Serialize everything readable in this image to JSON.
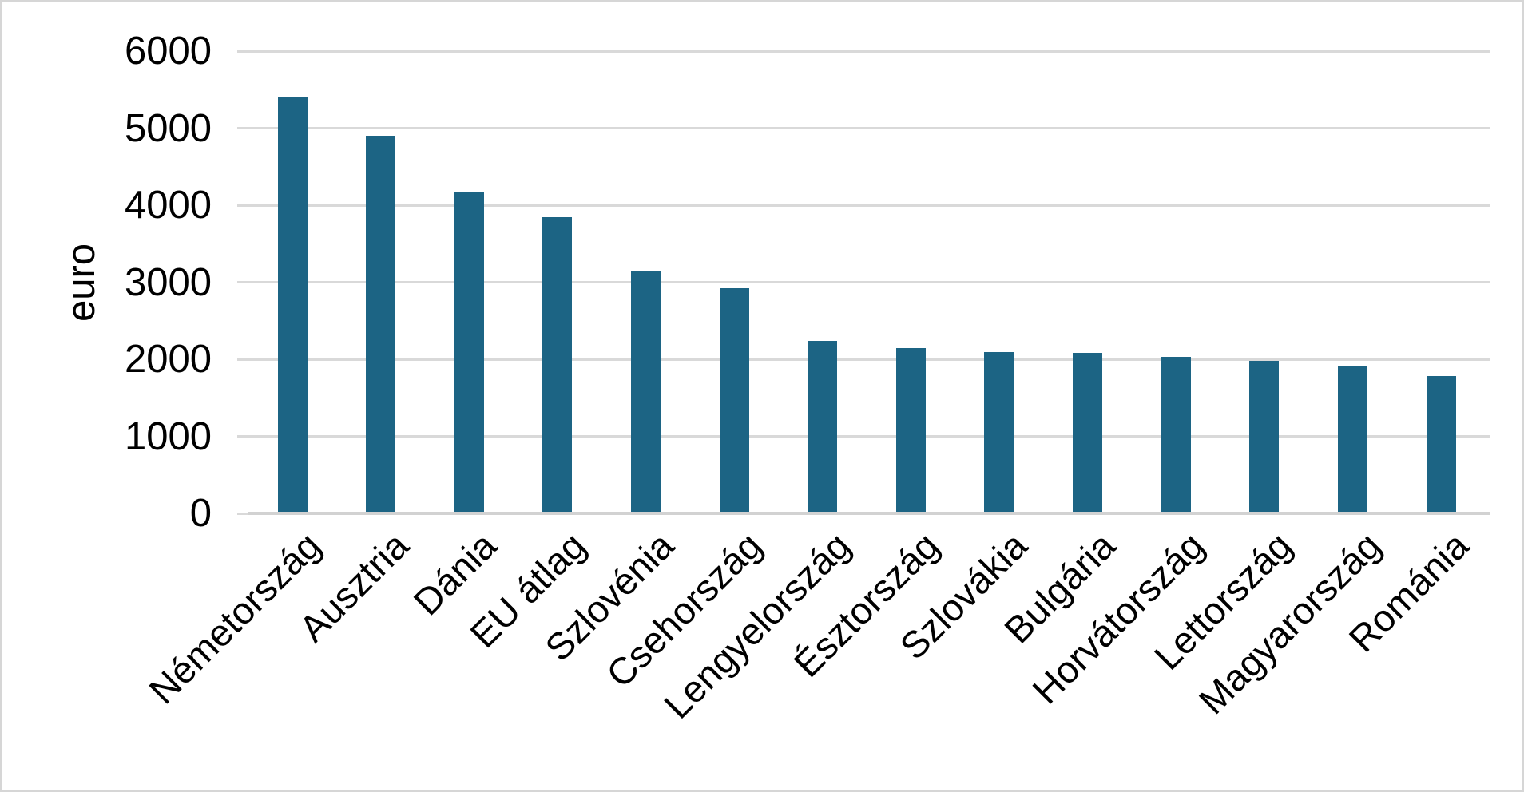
{
  "chart_data": {
    "type": "bar",
    "title": "",
    "ylabel": "euro",
    "xlabel": "",
    "categories": [
      "Németország",
      "Ausztria",
      "Dánia",
      "EU átlag",
      "Szlovénia",
      "Csehország",
      "Lengyelország",
      "Észtország",
      "Szlovákia",
      "Bulgária",
      "Horvátország",
      "Lettország",
      "Magyarország",
      "Románia"
    ],
    "values": [
      5400,
      4900,
      4180,
      3840,
      3140,
      2920,
      2240,
      2150,
      2090,
      2085,
      2030,
      1975,
      1920,
      1780
    ],
    "ylim": [
      0,
      6000
    ],
    "yticks": [
      0,
      1000,
      2000,
      3000,
      4000,
      5000,
      6000
    ],
    "grid": "horizontal",
    "legend": "none",
    "bar_count": 14,
    "colors": {
      "bar": "#1C6484",
      "gridline": "#D9D9D9",
      "axis_line": "#D2D2D2",
      "text": "#000000",
      "background": "#FFFFFF",
      "frame_border": "#D6D6D6"
    }
  }
}
